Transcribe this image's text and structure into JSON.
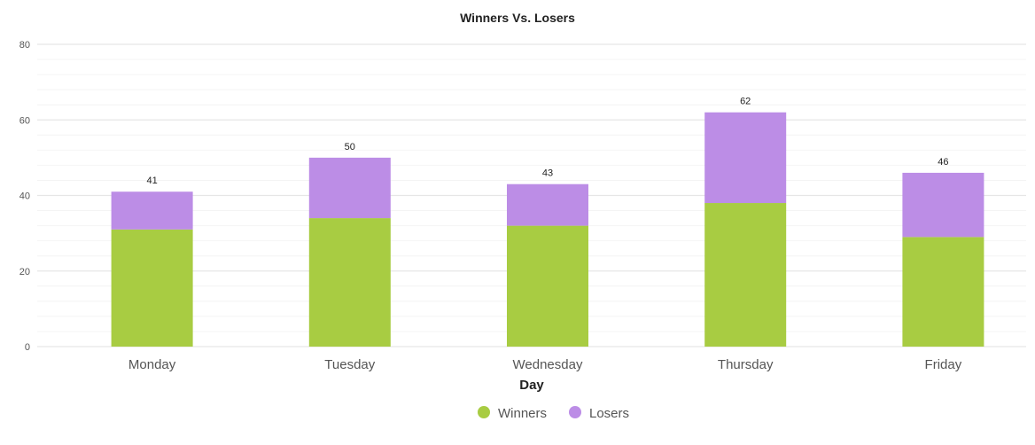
{
  "chart_data": {
    "type": "bar",
    "stacked": true,
    "title": "Winners Vs. Losers",
    "xlabel": "Day",
    "ylabel": "",
    "ylim": [
      0,
      80
    ],
    "yticks": [
      "0",
      "20",
      "40",
      "60",
      "80"
    ],
    "categories": [
      "Monday",
      "Tuesday",
      "Wednesday",
      "Thursday",
      "Friday"
    ],
    "series": [
      {
        "name": "Winners",
        "color": "#a8cc42",
        "values": [
          31,
          34,
          32,
          38,
          29
        ]
      },
      {
        "name": "Losers",
        "color": "#bc8de6",
        "values": [
          10,
          16,
          11,
          24,
          17
        ]
      }
    ],
    "totals": [
      "41",
      "50",
      "43",
      "62",
      "46"
    ],
    "grid": true,
    "legend": "bottom-center"
  }
}
